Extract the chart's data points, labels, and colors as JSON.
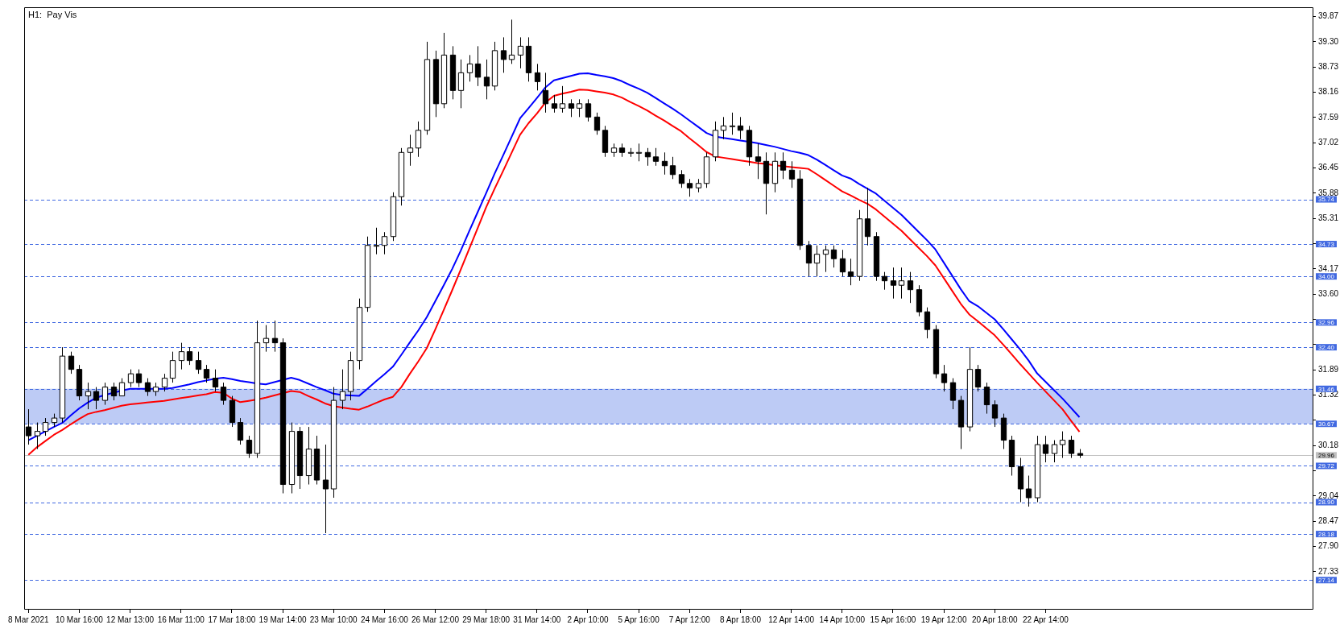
{
  "chart_data": {
    "type": "candlestick",
    "title": "H1:  Pay Vis",
    "categories": [
      "8 Mar 2021",
      null,
      null,
      null,
      null,
      null,
      "10 Mar 16:00",
      null,
      null,
      null,
      null,
      null,
      "12 Mar 13:00",
      null,
      null,
      null,
      null,
      null,
      "16 Mar 11:00",
      null,
      null,
      null,
      null,
      null,
      "17 Mar 18:00",
      null,
      null,
      null,
      null,
      null,
      "19 Mar 14:00",
      null,
      null,
      null,
      null,
      null,
      "23 Mar 10:00",
      null,
      null,
      null,
      null,
      null,
      "24 Mar 16:00",
      null,
      null,
      null,
      null,
      null,
      "26 Mar 12:00",
      null,
      null,
      null,
      null,
      null,
      "29 Mar 18:00",
      null,
      null,
      null,
      null,
      null,
      "31 Mar 14:00",
      null,
      null,
      null,
      null,
      null,
      "2 Apr 10:00",
      null,
      null,
      null,
      null,
      null,
      "5 Apr 16:00",
      null,
      null,
      null,
      null,
      null,
      "7 Apr 12:00",
      null,
      null,
      null,
      null,
      null,
      "8 Apr 18:00",
      null,
      null,
      null,
      null,
      null,
      "12 Apr 14:00",
      null,
      null,
      null,
      null,
      null,
      "14 Apr 10:00",
      null,
      null,
      null,
      null,
      null,
      "15 Apr 16:00",
      null,
      null,
      null,
      null,
      null,
      "19 Apr 12:00",
      null,
      null,
      null,
      null,
      null,
      "20 Apr 18:00",
      null,
      null,
      null,
      null,
      null,
      "22 Apr 14:00",
      null,
      null,
      null,
      null,
      null,
      null,
      null,
      null,
      null,
      null,
      null,
      null,
      null,
      null,
      null,
      null,
      null,
      null,
      null,
      null,
      null,
      null,
      null,
      null,
      null,
      null,
      null,
      null,
      null,
      null,
      null
    ],
    "ohlc": [
      [
        30.6,
        31.0,
        30.2,
        30.4
      ],
      [
        30.4,
        30.7,
        30.1,
        30.5
      ],
      [
        30.5,
        30.8,
        30.4,
        30.7
      ],
      [
        30.7,
        30.9,
        30.6,
        30.8
      ],
      [
        30.8,
        32.4,
        30.7,
        32.2
      ],
      [
        32.2,
        32.3,
        31.8,
        31.9
      ],
      [
        31.9,
        32.0,
        31.2,
        31.3
      ],
      [
        31.3,
        31.6,
        31.0,
        31.4
      ],
      [
        31.4,
        31.5,
        31.0,
        31.2
      ],
      [
        31.2,
        31.6,
        31.1,
        31.5
      ],
      [
        31.5,
        31.6,
        31.2,
        31.3
      ],
      [
        31.3,
        31.7,
        31.3,
        31.6
      ],
      [
        31.6,
        31.9,
        31.5,
        31.8
      ],
      [
        31.8,
        31.9,
        31.5,
        31.6
      ],
      [
        31.6,
        31.7,
        31.3,
        31.4
      ],
      [
        31.4,
        31.6,
        31.3,
        31.5
      ],
      [
        31.5,
        31.8,
        31.4,
        31.7
      ],
      [
        31.7,
        32.3,
        31.6,
        32.1
      ],
      [
        32.1,
        32.5,
        31.9,
        32.3
      ],
      [
        32.3,
        32.4,
        32.0,
        32.1
      ],
      [
        32.1,
        32.3,
        31.8,
        31.9
      ],
      [
        31.9,
        32.0,
        31.6,
        31.7
      ],
      [
        31.7,
        31.9,
        31.4,
        31.5
      ],
      [
        31.5,
        31.6,
        31.1,
        31.2
      ],
      [
        31.2,
        31.3,
        30.6,
        30.7
      ],
      [
        30.7,
        30.8,
        30.2,
        30.3
      ],
      [
        30.3,
        30.4,
        29.9,
        30.0
      ],
      [
        30.0,
        33.0,
        29.9,
        32.5
      ],
      [
        32.5,
        32.9,
        32.3,
        32.6
      ],
      [
        32.6,
        33.0,
        32.3,
        32.5
      ],
      [
        32.5,
        32.6,
        29.1,
        29.3
      ],
      [
        29.3,
        30.7,
        29.1,
        30.5
      ],
      [
        30.5,
        30.6,
        29.2,
        29.5
      ],
      [
        29.5,
        30.6,
        29.3,
        30.1
      ],
      [
        30.1,
        30.4,
        29.3,
        29.4
      ],
      [
        29.4,
        30.2,
        28.2,
        29.2
      ],
      [
        29.2,
        31.5,
        29.0,
        31.2
      ],
      [
        31.2,
        31.9,
        31.0,
        31.4
      ],
      [
        31.4,
        32.3,
        31.2,
        32.1
      ],
      [
        32.1,
        33.5,
        31.9,
        33.3
      ],
      [
        33.3,
        34.9,
        33.2,
        34.7
      ],
      [
        34.7,
        35.1,
        34.5,
        34.7
      ],
      [
        34.7,
        35.0,
        34.5,
        34.9
      ],
      [
        34.9,
        35.9,
        34.8,
        35.8
      ],
      [
        35.8,
        36.9,
        35.6,
        36.8
      ],
      [
        36.8,
        37.2,
        36.5,
        36.9
      ],
      [
        36.9,
        37.5,
        36.7,
        37.3
      ],
      [
        37.3,
        39.3,
        37.2,
        38.9
      ],
      [
        38.9,
        39.1,
        37.6,
        37.9
      ],
      [
        37.9,
        39.5,
        37.8,
        39.0
      ],
      [
        39.0,
        39.2,
        38.0,
        38.2
      ],
      [
        38.2,
        38.9,
        37.8,
        38.6
      ],
      [
        38.6,
        39.0,
        38.4,
        38.8
      ],
      [
        38.8,
        39.2,
        38.3,
        38.5
      ],
      [
        38.5,
        38.9,
        38.0,
        38.3
      ],
      [
        38.3,
        39.3,
        38.2,
        39.1
      ],
      [
        39.1,
        39.4,
        38.6,
        38.9
      ],
      [
        38.9,
        39.8,
        38.8,
        39.0
      ],
      [
        39.0,
        39.4,
        38.7,
        39.2
      ],
      [
        39.2,
        39.4,
        38.4,
        38.6
      ],
      [
        38.6,
        38.8,
        38.2,
        38.4
      ],
      [
        38.2,
        38.6,
        37.7,
        37.9
      ],
      [
        37.9,
        38.1,
        37.7,
        37.8
      ],
      [
        37.8,
        38.3,
        37.7,
        37.9
      ],
      [
        37.9,
        38.0,
        37.6,
        37.8
      ],
      [
        37.8,
        38.0,
        37.6,
        37.9
      ],
      [
        37.9,
        38.0,
        37.5,
        37.6
      ],
      [
        37.6,
        37.7,
        37.2,
        37.3
      ],
      [
        37.3,
        37.4,
        36.7,
        36.8
      ],
      [
        36.8,
        37.0,
        36.7,
        36.9
      ],
      [
        36.9,
        37.0,
        36.7,
        36.8
      ],
      [
        36.8,
        36.9,
        36.7,
        36.8
      ],
      [
        36.8,
        37.0,
        36.6,
        36.8
      ],
      [
        36.8,
        36.9,
        36.5,
        36.7
      ],
      [
        36.7,
        36.9,
        36.5,
        36.6
      ],
      [
        36.6,
        36.8,
        36.3,
        36.5
      ],
      [
        36.5,
        36.7,
        36.2,
        36.3
      ],
      [
        36.3,
        36.4,
        36.0,
        36.1
      ],
      [
        36.1,
        36.2,
        35.8,
        36.0
      ],
      [
        36.0,
        36.2,
        35.9,
        36.1
      ],
      [
        36.1,
        36.8,
        36.0,
        36.7
      ],
      [
        36.7,
        37.5,
        36.6,
        37.3
      ],
      [
        37.3,
        37.6,
        37.1,
        37.4
      ],
      [
        37.4,
        37.7,
        37.2,
        37.4
      ],
      [
        37.4,
        37.6,
        37.1,
        37.3
      ],
      [
        37.3,
        37.4,
        36.5,
        36.7
      ],
      [
        36.7,
        37.0,
        36.2,
        36.6
      ],
      [
        36.6,
        36.8,
        35.4,
        36.1
      ],
      [
        36.1,
        36.8,
        35.9,
        36.6
      ],
      [
        36.6,
        36.8,
        36.2,
        36.4
      ],
      [
        36.4,
        36.6,
        36.0,
        36.2
      ],
      [
        36.2,
        36.4,
        34.6,
        34.7
      ],
      [
        34.7,
        34.8,
        34.0,
        34.3
      ],
      [
        34.3,
        34.7,
        34.0,
        34.5
      ],
      [
        34.5,
        34.7,
        34.1,
        34.6
      ],
      [
        34.6,
        34.7,
        34.2,
        34.4
      ],
      [
        34.4,
        34.6,
        34.0,
        34.1
      ],
      [
        34.1,
        34.4,
        33.8,
        34.0
      ],
      [
        34.0,
        35.5,
        33.9,
        35.3
      ],
      [
        35.3,
        36.0,
        34.7,
        34.9
      ],
      [
        34.9,
        35.0,
        33.9,
        34.0
      ],
      [
        34.0,
        34.1,
        33.7,
        33.9
      ],
      [
        33.9,
        34.2,
        33.5,
        33.8
      ],
      [
        33.8,
        34.2,
        33.5,
        33.9
      ],
      [
        33.9,
        34.1,
        33.4,
        33.7
      ],
      [
        33.7,
        33.8,
        33.1,
        33.2
      ],
      [
        33.2,
        33.3,
        32.6,
        32.8
      ],
      [
        32.8,
        32.9,
        31.7,
        31.8
      ],
      [
        31.8,
        32.0,
        31.4,
        31.6
      ],
      [
        31.6,
        31.7,
        31.0,
        31.2
      ],
      [
        31.2,
        31.3,
        30.1,
        30.6
      ],
      [
        30.6,
        32.4,
        30.5,
        31.9
      ],
      [
        31.9,
        32.0,
        31.4,
        31.5
      ],
      [
        31.5,
        31.6,
        30.9,
        31.1
      ],
      [
        31.1,
        31.2,
        30.6,
        30.8
      ],
      [
        30.8,
        30.9,
        30.1,
        30.3
      ],
      [
        30.3,
        30.4,
        29.5,
        29.7
      ],
      [
        29.7,
        29.9,
        28.9,
        29.2
      ],
      [
        29.2,
        29.5,
        28.8,
        29.0
      ],
      [
        29.0,
        30.4,
        28.9,
        30.2
      ],
      [
        30.2,
        30.4,
        29.8,
        30.0
      ],
      [
        30.0,
        30.3,
        29.8,
        30.2
      ],
      [
        30.2,
        30.5,
        29.9,
        30.3
      ],
      [
        30.3,
        30.4,
        29.9,
        30.0
      ],
      [
        30.0,
        30.1,
        29.9,
        29.96
      ],
      null,
      null,
      null,
      null,
      null,
      null,
      null,
      null,
      null,
      null,
      null,
      null,
      null,
      null,
      null,
      null,
      null,
      null,
      null,
      null,
      null,
      null,
      null,
      null,
      null,
      null,
      null
    ],
    "series": [
      {
        "type": "line",
        "color": "#0000ff",
        "values": [
          30.3,
          30.4,
          30.5,
          30.6,
          30.69,
          30.86,
          31.02,
          31.15,
          31.26,
          31.32,
          31.37,
          31.42,
          31.46,
          31.46,
          31.46,
          31.46,
          31.46,
          31.48,
          31.52,
          31.56,
          31.61,
          31.65,
          31.69,
          31.71,
          31.68,
          31.64,
          31.61,
          31.58,
          31.56,
          31.61,
          31.66,
          31.71,
          31.66,
          31.58,
          31.5,
          31.43,
          31.35,
          31.32,
          31.31,
          31.3,
          31.46,
          31.63,
          31.79,
          31.96,
          32.23,
          32.51,
          32.78,
          33.08,
          33.44,
          33.8,
          34.17,
          34.58,
          35.02,
          35.45,
          35.88,
          36.32,
          36.73,
          37.15,
          37.57,
          37.8,
          38.03,
          38.27,
          38.43,
          38.48,
          38.53,
          38.58,
          38.59,
          38.55,
          38.52,
          38.48,
          38.41,
          38.32,
          38.24,
          38.15,
          38.03,
          37.91,
          37.79,
          37.66,
          37.52,
          37.38,
          37.24,
          37.16,
          37.13,
          37.1,
          37.07,
          37.04,
          37.01,
          36.97,
          36.93,
          36.88,
          36.83,
          36.79,
          36.74,
          36.64,
          36.52,
          36.4,
          36.28,
          36.21,
          36.09,
          35.98,
          35.87,
          35.71,
          35.55,
          35.39,
          35.2,
          35.01,
          34.82,
          34.61,
          34.31,
          34.01,
          33.71,
          33.44,
          33.33,
          33.18,
          33.03,
          32.81,
          32.58,
          32.35,
          32.1,
          31.81,
          31.62,
          31.43,
          31.24,
          31.03,
          30.82,
          null,
          null,
          null,
          null,
          null,
          null,
          null,
          null,
          null,
          null,
          null,
          null,
          null,
          null,
          null,
          null,
          null,
          null,
          null,
          null,
          null,
          null,
          null,
          null,
          null,
          null,
          null
        ]
      },
      {
        "type": "line",
        "color": "#ff0000",
        "values": [
          29.97,
          30.14,
          30.28,
          30.42,
          30.53,
          30.66,
          30.78,
          30.89,
          30.94,
          30.98,
          31.03,
          31.08,
          31.11,
          31.13,
          31.15,
          31.17,
          31.19,
          31.22,
          31.25,
          31.28,
          31.31,
          31.34,
          31.39,
          31.37,
          31.24,
          31.16,
          31.19,
          31.22,
          31.26,
          31.31,
          31.36,
          31.41,
          31.39,
          31.3,
          31.22,
          31.13,
          31.07,
          31.04,
          31.01,
          30.99,
          31.06,
          31.14,
          31.22,
          31.28,
          31.5,
          31.8,
          32.08,
          32.38,
          32.8,
          33.24,
          33.69,
          34.15,
          34.62,
          35.09,
          35.56,
          35.98,
          36.38,
          36.79,
          37.2,
          37.46,
          37.68,
          37.93,
          38.08,
          38.13,
          38.17,
          38.22,
          38.21,
          38.18,
          38.15,
          38.11,
          38.04,
          37.94,
          37.85,
          37.75,
          37.63,
          37.52,
          37.4,
          37.28,
          37.12,
          36.97,
          36.81,
          36.71,
          36.68,
          36.65,
          36.62,
          36.59,
          36.56,
          36.54,
          36.51,
          36.49,
          36.47,
          36.45,
          36.43,
          36.31,
          36.18,
          36.05,
          35.92,
          35.83,
          35.73,
          35.64,
          35.51,
          35.35,
          35.19,
          35.03,
          34.84,
          34.65,
          34.46,
          34.25,
          33.96,
          33.67,
          33.38,
          33.14,
          32.99,
          32.83,
          32.67,
          32.46,
          32.24,
          32.02,
          31.81,
          31.6,
          31.4,
          31.2,
          31.0,
          30.74,
          30.49,
          null,
          null,
          null,
          null,
          null,
          null,
          null,
          null,
          null,
          null,
          null,
          null,
          null,
          null,
          null,
          null,
          null,
          null,
          null,
          null,
          null,
          null,
          null,
          null,
          null,
          null,
          null
        ]
      }
    ],
    "ylim": [
      26.49,
      40.08
    ],
    "yticks": [
      39.87,
      {
        "value": 39.3,
        "label": "39.30"
      },
      38.73,
      38.16,
      37.59,
      37.02,
      36.45,
      35.88,
      35.31,
      {
        "value": 34.74,
        "label": null
      },
      34.17,
      {
        "value": 33.6,
        "label": "33.60"
      },
      {
        "value": 33.03,
        "label": null
      },
      {
        "value": 32.46,
        "label": null
      },
      31.89,
      31.32,
      {
        "value": 30.75,
        "label": null
      },
      30.18,
      {
        "value": 29.61,
        "label": null
      },
      29.04,
      28.47,
      {
        "value": 27.9,
        "label": "27.90"
      },
      27.33
    ],
    "ref_lines": [
      {
        "axis": "y",
        "value": 35.74,
        "label": "35.74",
        "color": "#4169e1",
        "line_style": "dashed"
      },
      {
        "axis": "y",
        "value": 34.73,
        "label": "34.73",
        "color": "#4169e1",
        "line_style": "dashed"
      },
      {
        "axis": "y",
        "value": 34.0,
        "label": "34.00",
        "color": "#4169e1",
        "line_style": "dashed"
      },
      {
        "axis": "y",
        "value": 32.96,
        "label": "32.96",
        "color": "#4169e1",
        "line_style": "dashed"
      },
      {
        "axis": "y",
        "value": 32.4,
        "label": "32.40",
        "color": "#4169e1",
        "line_style": "dashed"
      },
      {
        "axis": "y",
        "value": 31.46,
        "label": "31.46",
        "color": "#4169e1",
        "line_style": "dashed"
      },
      {
        "axis": "y",
        "value": 30.67,
        "label": "30.67",
        "color": "#4169e1",
        "line_style": "dashed"
      },
      {
        "axis": "y",
        "value": 29.96,
        "label": "29.96",
        "color": "#c0c0c0",
        "line_style": "solid"
      },
      {
        "axis": "y",
        "value": 29.72,
        "label": "29.72",
        "color": "#4169e1",
        "line_style": "dashed"
      },
      {
        "axis": "y",
        "value": 28.9,
        "label": "28.90",
        "color": "#4169e1",
        "line_style": "dashed"
      },
      {
        "axis": "y",
        "value": 28.18,
        "label": "28.18",
        "color": "#4169e1",
        "line_style": "dashed"
      },
      {
        "axis": "y",
        "value": 27.14,
        "label": "27.14",
        "color": "#4169e1",
        "line_style": "dashed"
      }
    ],
    "bands": [
      {
        "axis": "y",
        "from": 30.67,
        "to": 31.46,
        "color": "#4169e1"
      }
    ]
  }
}
